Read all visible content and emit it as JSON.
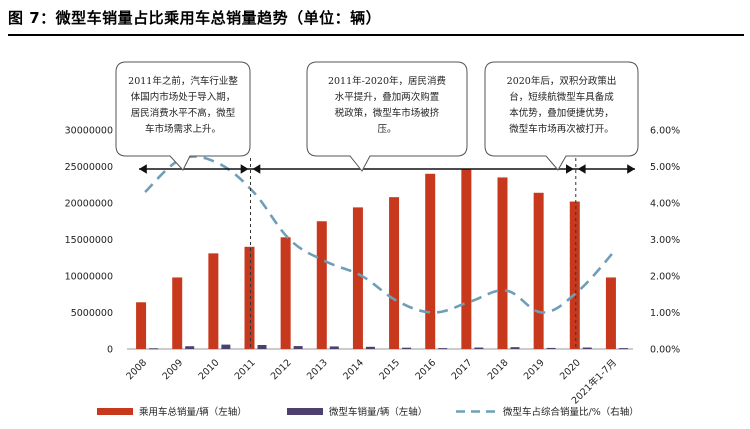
{
  "title": "图 7：微型车销量占比乘用车总销量趋势（单位：辆）",
  "colors": {
    "total_bar": "#c8381c",
    "micro_bar": "#4d3f6e",
    "share_line": "#6f9fb8",
    "bubble_border": "#555555",
    "arrow": "#111111"
  },
  "annotations": [
    {
      "lines": [
        "2011年之前，汽车行业整",
        "体国内市场处于导入期，",
        "居民消费水平不高，微型",
        "车市场需求上升。"
      ]
    },
    {
      "lines": [
        "2011年-2020年，居民消费",
        "水平提升，叠加两次购置",
        "税政策，微型车市场被挤",
        "压。"
      ]
    },
    {
      "lines": [
        "2020年后，双积分政策出",
        "台，短续航微型车具备成",
        "本优势，叠加便捷优势，",
        "微型车市场再次被打开。"
      ]
    }
  ],
  "chart_data": {
    "type": "bar",
    "categories": [
      "2008",
      "2009",
      "2010",
      "2011",
      "2012",
      "2013",
      "2014",
      "2015",
      "2016",
      "2017",
      "2018",
      "2019",
      "2020",
      "2021年1-7月"
    ],
    "series": [
      {
        "name": "乘用车总销量/辆（左轴）",
        "type": "bar",
        "axis": "left",
        "values": [
          6400000,
          9800000,
          13100000,
          14000000,
          15300000,
          17500000,
          19400000,
          20800000,
          24000000,
          24700000,
          23500000,
          21400000,
          20200000,
          9800000
        ]
      },
      {
        "name": "微型车销量/辆（左轴）",
        "type": "bar",
        "axis": "left",
        "values": [
          100000,
          380000,
          600000,
          550000,
          400000,
          350000,
          300000,
          180000,
          120000,
          200000,
          250000,
          150000,
          200000,
          120000
        ]
      },
      {
        "name": "微型车占综合销量比/%（右轴）",
        "type": "line",
        "axis": "right",
        "style": "dashed",
        "values": [
          4.3,
          5.2,
          5.1,
          4.3,
          3.0,
          2.4,
          2.0,
          1.3,
          1.0,
          1.3,
          1.6,
          1.0,
          1.6,
          2.7
        ]
      }
    ],
    "y_left": {
      "min": 0,
      "max": 30000000,
      "ticks": [
        "0",
        "5000000",
        "10000000",
        "15000000",
        "20000000",
        "25000000",
        "30000000"
      ]
    },
    "y_right": {
      "min": 0,
      "max": 6,
      "ticks": [
        "0.00%",
        "1.00%",
        "2.00%",
        "3.00%",
        "4.00%",
        "5.00%",
        "6.00%"
      ]
    },
    "grid": false,
    "legend": "bottom",
    "legend_labels": [
      "乘用车总销量/辆（左轴）",
      "微型车销量/辆（左轴）",
      "微型车占综合销量比/%（右轴）"
    ],
    "period_markers": [
      "2011",
      "2020"
    ]
  }
}
